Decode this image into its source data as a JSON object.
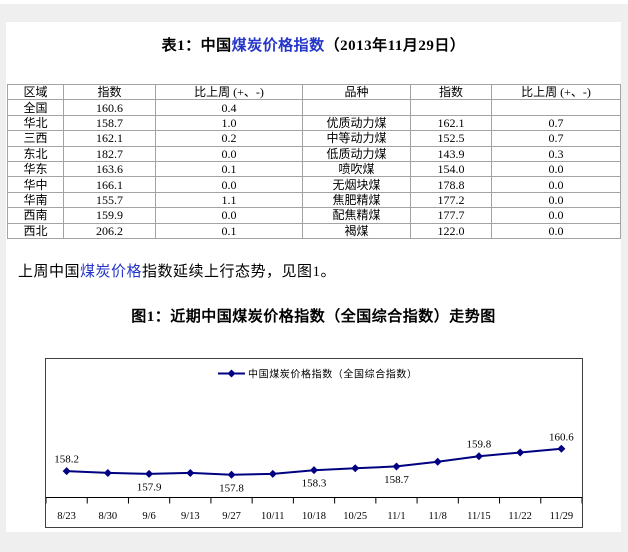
{
  "table_title": {
    "prefix": "表1：中国",
    "link": "煤炭价格指数",
    "suffix": "（2013年11月29日）"
  },
  "table": {
    "headers": [
      "区域",
      "指数",
      "比上周 (+、-)",
      "品种",
      "指数",
      "比上周 (+、-)"
    ],
    "rows": [
      [
        "全国",
        "160.6",
        "0.4",
        "",
        "",
        ""
      ],
      [
        "华北",
        "158.7",
        "1.0",
        "优质动力煤",
        "162.1",
        "0.7"
      ],
      [
        "三西",
        "162.1",
        "0.2",
        "中等动力煤",
        "152.5",
        "0.7"
      ],
      [
        "东北",
        "182.7",
        "0.0",
        "低质动力煤",
        "143.9",
        "0.3"
      ],
      [
        "华东",
        "163.6",
        "0.1",
        "喷吹煤",
        "154.0",
        "0.0"
      ],
      [
        "华中",
        "166.1",
        "0.0",
        "无烟块煤",
        "178.8",
        "0.0"
      ],
      [
        "华南",
        "155.7",
        "1.1",
        "焦肥精煤",
        "177.2",
        "0.0"
      ],
      [
        "西南",
        "159.9",
        "0.0",
        "配焦精煤",
        "177.7",
        "0.0"
      ],
      [
        "西北",
        "206.2",
        "0.1",
        "褐煤",
        "122.0",
        "0.0"
      ]
    ]
  },
  "paragraph": {
    "prefix": "上周中国",
    "link": "煤炭价格",
    "suffix": "指数延续上行态势，见图1。"
  },
  "figure_title": "图1：近期中国煤炭价格指数（全国综合指数）走势图",
  "chart_data": {
    "type": "line",
    "legend": "中国煤炭价格指数（全国综合指数）",
    "legend_position": "top-center",
    "marker": "diamond",
    "grid": false,
    "y_axis_visible": false,
    "ylim": [
      157.5,
      161.0
    ],
    "categories": [
      "8/23",
      "8/30",
      "9/6",
      "9/13",
      "9/27",
      "10/11",
      "10/18",
      "10/25",
      "11/1",
      "11/8",
      "11/15",
      "11/22",
      "11/29"
    ],
    "series": [
      {
        "name": "中国煤炭价格指数（全国综合指数）",
        "values": [
          158.2,
          158.0,
          157.9,
          158.0,
          157.8,
          157.9,
          158.3,
          158.5,
          158.7,
          159.2,
          159.8,
          160.2,
          160.6
        ]
      }
    ],
    "point_labels": [
      {
        "index": 0,
        "text": "158.2",
        "position": "above"
      },
      {
        "index": 2,
        "text": "157.9",
        "position": "below"
      },
      {
        "index": 4,
        "text": "157.8",
        "position": "below"
      },
      {
        "index": 6,
        "text": "158.3",
        "position": "below"
      },
      {
        "index": 8,
        "text": "158.7",
        "position": "below"
      },
      {
        "index": 10,
        "text": "159.8",
        "position": "above"
      },
      {
        "index": 12,
        "text": "160.6",
        "position": "above"
      }
    ]
  },
  "colors": {
    "link_blue": "#2435c8",
    "line_navy": "#000080",
    "table_border": "#a3a3a3",
    "page_bg": "#ffffff",
    "outer_bg": "#efefef"
  }
}
